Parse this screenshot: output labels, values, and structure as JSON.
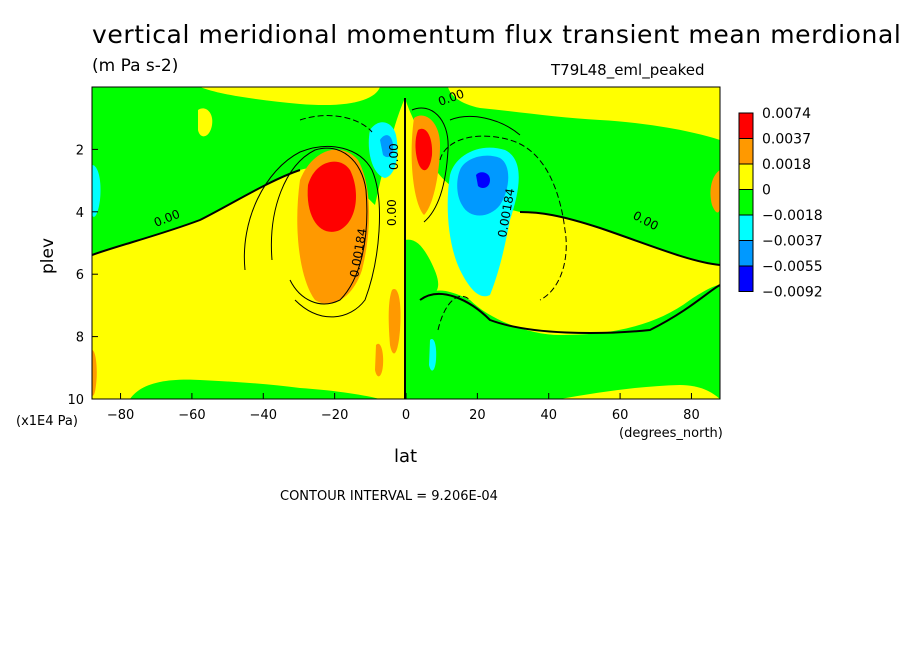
{
  "chart_data": {
    "type": "heatmap",
    "title": "vertical meridional momentum flux transient mean merdional",
    "units": "(m Pa s-2)",
    "case_label": "T79L48_eml_peaked",
    "xlabel": "lat",
    "xunits": "(degrees_north)",
    "ylabel": "plev",
    "yunits": "(x1E4 Pa)",
    "xlim": [
      -88,
      88
    ],
    "ylim": [
      10,
      0
    ],
    "x_ticks": [
      "-80",
      "-60",
      "-40",
      "-20",
      "0",
      "20",
      "40",
      "60",
      "80"
    ],
    "y_ticks": [
      "2",
      "4",
      "6",
      "8",
      "10"
    ],
    "contour_interval": "CONTOUR INTERVAL = 9.206E-04",
    "legend": {
      "labels": [
        "0.0074",
        "0.0037",
        "0.0018",
        "0",
        "−0.0018",
        "−0.0037",
        "−0.0055",
        "−0.0092"
      ],
      "colors": [
        "#ff0000",
        "#ff9900",
        "#ffff00",
        "#00ff00",
        "#00ffff",
        "#0099ff",
        "#0000ff"
      ]
    },
    "contour_labels": [
      "0.00",
      "0.00",
      "0.00",
      "0.00",
      "0.00184",
      "0.00184",
      "0.00"
    ],
    "features": [
      {
        "name": "SH positive maximum",
        "lat": -20,
        "plev": 3.2,
        "value": 0.0074
      },
      {
        "name": "NH equatorward positive maximum",
        "lat": 6,
        "plev": 2.3,
        "value": 0.0074
      },
      {
        "name": "NH negative minimum",
        "lat": 22,
        "plev": 3.1,
        "value": -0.0092
      },
      {
        "name": "SH near-equator negative",
        "lat": -6,
        "plev": 2.5,
        "value": -0.0037
      }
    ]
  }
}
